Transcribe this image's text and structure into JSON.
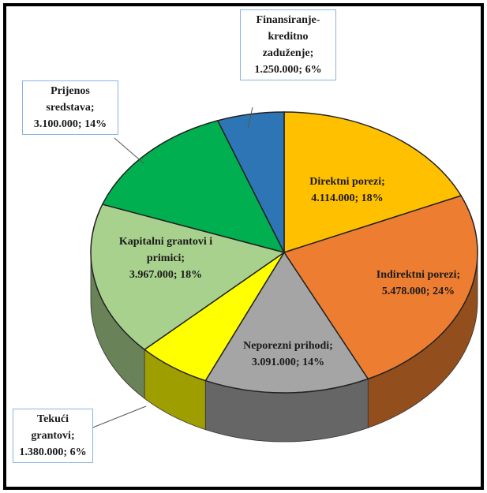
{
  "chart_data": {
    "type": "pie3d",
    "categories": [
      "Direktni porezi;",
      "Indirektni porezi;",
      "Neporezni prihodi;",
      "Tekući grantovi;",
      "Kapitalni grantovi i primici;",
      "Prijenos sredstava;",
      "Finansiranje-kreditno zaduženje;"
    ],
    "values": [
      4114000,
      5478000,
      3091000,
      1380000,
      3967000,
      3100000,
      1250000
    ],
    "value_labels": [
      "4.114.000; 18%",
      "5.478.000; 24%",
      "3.091.000; 14%",
      "1.380.000; 6%",
      "3.967.000; 18%",
      "3.100.000; 14%",
      "1.250.000; 6%"
    ],
    "colors": [
      "#ffc000",
      "#ed7d31",
      "#a5a5a5",
      "#ffff00",
      "#a9d18e",
      "#00b050",
      "#2e75b6"
    ]
  }
}
